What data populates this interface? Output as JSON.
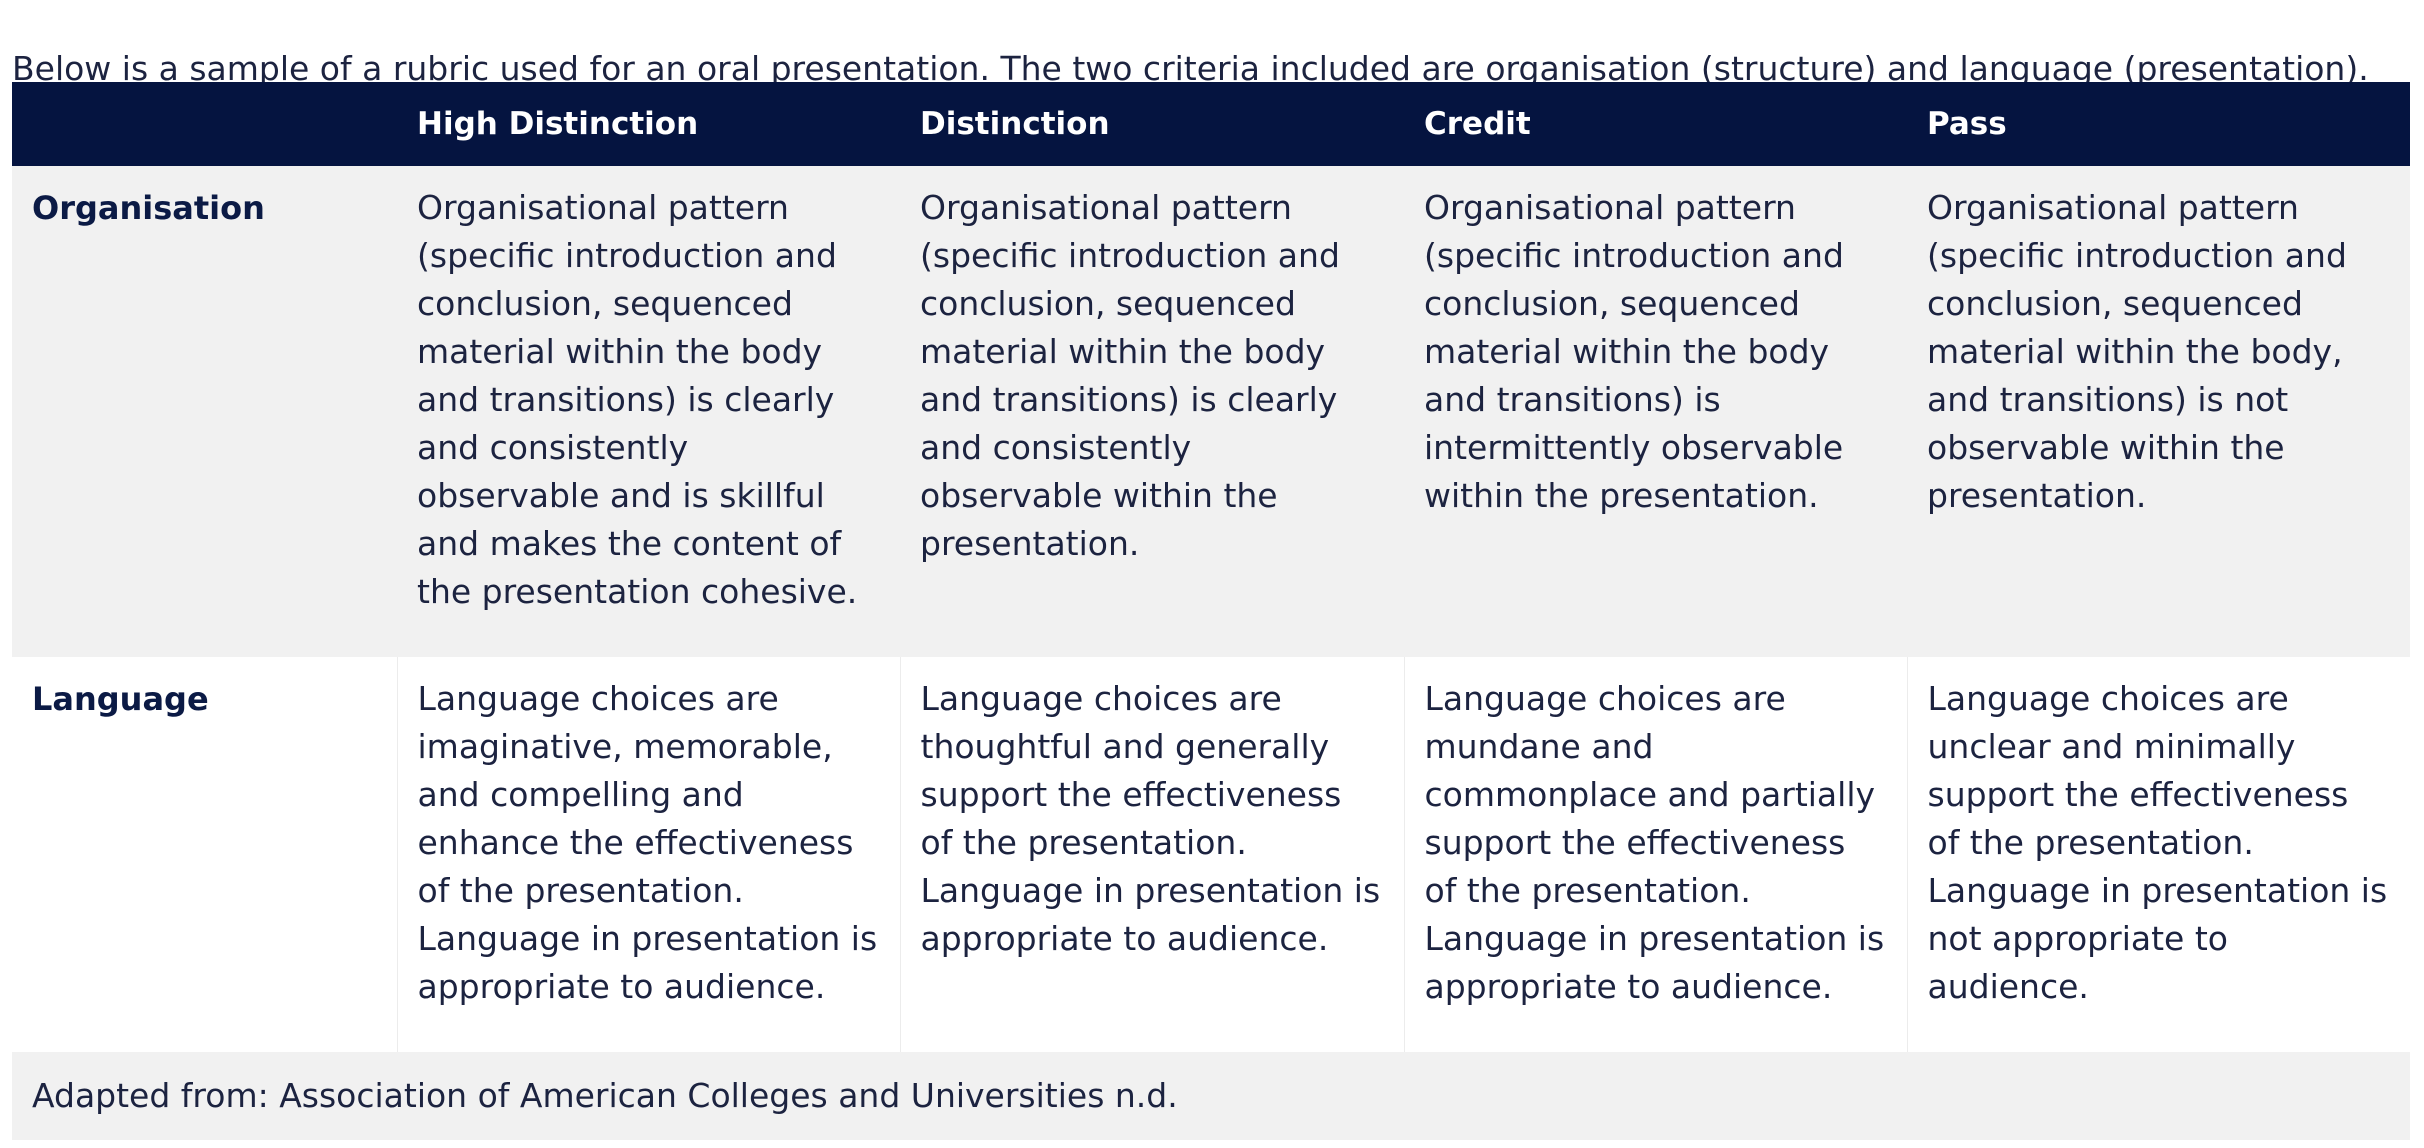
{
  "intro": "Below is a sample of a rubric used for an oral presentation. The two criteria included are organisation (structure) and language (presentation).",
  "table": {
    "headers": [
      "",
      "High Distinction",
      "Distinction",
      "Credit",
      "Pass"
    ],
    "rows": [
      {
        "label": "Organisation",
        "cells": [
          "Organisational pattern (specific introduction and conclusion, sequenced material within the body and transitions) is clearly and consistently observable and is skillful and makes the content of the presentation cohesive.",
          "Organisational pattern (specific introduction and conclusion, sequenced material within the body and transitions) is clearly and consistently observable within the presentation.",
          "Organisational pattern (specific introduction and conclusion, sequenced material within the body and transitions) is intermittently observable within the presentation.",
          "Organisational pattern (specific introduction and conclusion, sequenced material within the body, and transitions) is not observable within the presentation."
        ]
      },
      {
        "label": "Language",
        "cells": [
          "Language choices are imaginative, memorable, and compelling and enhance the effectiveness of the presentation. Language in presentation is appropriate to audience.",
          "Language choices are thoughtful and generally support the effectiveness of the presentation. Language in presentation is appropriate to audience.",
          "Language choices are mundane and commonplace and partially support the effectiveness of the presentation. Language in presentation is appropriate to audience.",
          "Language choices are unclear and minimally support the effectiveness of the presentation. Language in presentation is not appropriate to audience."
        ]
      }
    ],
    "source": "Adapted from: Association of American Colleges and Universities n.d."
  }
}
